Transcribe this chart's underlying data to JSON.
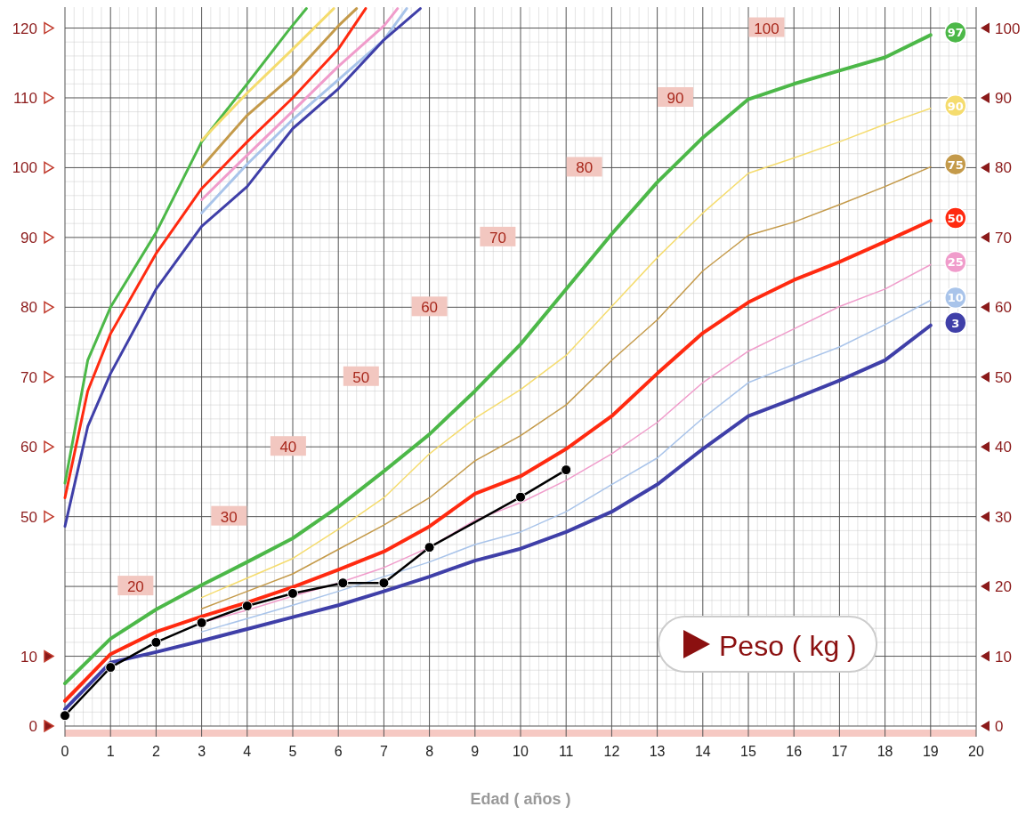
{
  "chart_data": {
    "type": "line",
    "xlabel": "Edad ( años )",
    "xlim": [
      0,
      20
    ],
    "xticks": [
      0,
      1,
      2,
      3,
      4,
      5,
      6,
      7,
      8,
      9,
      10,
      11,
      12,
      13,
      14,
      15,
      16,
      17,
      18,
      19,
      20
    ],
    "ylim": [
      20,
      123
    ],
    "yticks": [
      50,
      60,
      70,
      80,
      90,
      100,
      110,
      120
    ],
    "y3lim": [
      0,
      103
    ],
    "y3ticks": [
      0,
      10
    ],
    "y2lim": [
      0,
      103
    ],
    "y2ticks": [
      0,
      10,
      20,
      30,
      40,
      50,
      60,
      70,
      80,
      90,
      100
    ],
    "grid": true,
    "marker": "none",
    "annotations": [
      "Peso ( kg )",
      {
        "text": "20",
        "x": 1.55,
        "y": 40
      },
      {
        "text": "30",
        "x": 3.6,
        "y": 50
      },
      {
        "text": "40",
        "x": 4.9,
        "y": 60
      },
      {
        "text": "50",
        "x": 6.5,
        "y": 70
      },
      {
        "text": "60",
        "x": 8,
        "y": 80
      },
      {
        "text": "70",
        "x": 9.5,
        "y": 90
      },
      {
        "text": "80",
        "x": 11.4,
        "y": 100
      },
      {
        "text": "90",
        "x": 13.4,
        "y": 110
      },
      {
        "text": "100",
        "x": 15.4,
        "y": 120
      }
    ],
    "series": [
      {
        "color": "#4cb848",
        "axis": "y",
        "x": [
          0,
          0.5,
          1,
          2,
          3,
          4,
          4.9,
          5.3
        ],
        "values": [
          54.8,
          72.4,
          80,
          90.7,
          103.7,
          112,
          119.6,
          122.8
        ]
      },
      {
        "color": "#f5dc6e",
        "axis": "y",
        "x": [
          3,
          4,
          5,
          5.9
        ],
        "values": [
          103.9,
          110.7,
          117,
          122.8
        ]
      },
      {
        "color": "#c49a4a",
        "axis": "y",
        "x": [
          3,
          4,
          5,
          6,
          6.4
        ],
        "values": [
          100.1,
          107.5,
          113.2,
          120.3,
          122.8
        ]
      },
      {
        "color": "#ff2a10",
        "axis": "y",
        "x": [
          0,
          0.5,
          1,
          2,
          3,
          4,
          5,
          6,
          6.6
        ],
        "values": [
          52.7,
          68,
          76.2,
          87.7,
          97,
          103.7,
          110,
          117,
          122.8
        ]
      },
      {
        "color": "#f09ccb",
        "axis": "y",
        "x": [
          3,
          4,
          5,
          6,
          7,
          7.3
        ],
        "values": [
          95.4,
          101.8,
          108.1,
          114.5,
          120.3,
          122.8
        ]
      },
      {
        "color": "#a9c4ea",
        "axis": "y",
        "x": [
          3,
          4,
          5,
          6,
          7,
          7.5
        ],
        "values": [
          93.5,
          100.5,
          106.9,
          112.6,
          118.3,
          122.8
        ]
      },
      {
        "color": "#3f3fa8",
        "axis": "y",
        "x": [
          0,
          0.5,
          1,
          2,
          3,
          4,
          5,
          6,
          7,
          7.8
        ],
        "values": [
          48.6,
          62.9,
          70.5,
          82.6,
          91.6,
          97.3,
          105.6,
          111.3,
          118.3,
          122.8
        ]
      },
      {
        "name": "97",
        "color": "#4cb848",
        "axis": "y2",
        "x": [
          0,
          1,
          2,
          3,
          4,
          5,
          6,
          7,
          8,
          9,
          10,
          11,
          12,
          13,
          14,
          15,
          16,
          17,
          18,
          19
        ],
        "values": [
          6.1,
          12.5,
          16.7,
          20.2,
          23.5,
          26.9,
          31.4,
          36.5,
          41.8,
          48,
          54.7,
          62.6,
          70.5,
          77.9,
          84.3,
          89.8,
          92,
          93.9,
          95.8,
          99
        ]
      },
      {
        "name": "90",
        "color": "#f5dc6e",
        "axis": "y2",
        "x": [
          3,
          4,
          5,
          6,
          7,
          8,
          9,
          10,
          11,
          12,
          13,
          14,
          15,
          16,
          17,
          18,
          19
        ],
        "values": [
          18.4,
          21.2,
          24,
          28.2,
          32.7,
          39,
          44.1,
          48.2,
          53.1,
          60.1,
          67.1,
          73.5,
          79.2,
          81.4,
          83.7,
          86.2,
          88.5
        ]
      },
      {
        "name": "75",
        "color": "#c49a4a",
        "axis": "y2",
        "x": [
          3,
          4,
          5,
          6,
          7,
          8,
          9,
          10,
          11,
          12,
          13,
          14,
          15,
          16,
          17,
          18,
          19
        ],
        "values": [
          16.8,
          19.3,
          21.8,
          25.3,
          28.8,
          32.7,
          38,
          41.6,
          46,
          52.4,
          58.2,
          65.2,
          70.3,
          72.2,
          74.7,
          77.3,
          80.1
        ]
      },
      {
        "name": "50",
        "color": "#ff2a10",
        "axis": "y2",
        "x": [
          0,
          1,
          2,
          3,
          4,
          5,
          6,
          7,
          8,
          9,
          10,
          11,
          12,
          13,
          14,
          15,
          16,
          17,
          18,
          19
        ],
        "values": [
          3.6,
          10.3,
          13.5,
          15.7,
          17.7,
          19.9,
          22.4,
          25,
          28.6,
          33.3,
          35.8,
          39.7,
          44.4,
          50.5,
          56.3,
          60.7,
          63.9,
          66.5,
          69.4,
          72.4
        ]
      },
      {
        "name": "25",
        "color": "#f09ccb",
        "axis": "y2",
        "x": [
          3,
          4,
          5,
          6,
          7,
          8,
          9,
          10,
          11,
          12,
          13,
          14,
          15,
          16,
          17,
          18,
          19
        ],
        "values": [
          14.8,
          16.6,
          18.6,
          20.5,
          22.7,
          25.6,
          29.5,
          32,
          35.2,
          39,
          43.5,
          49.2,
          53.7,
          56.9,
          60.1,
          62.6,
          66.1
        ]
      },
      {
        "name": "10",
        "color": "#a9c4ea",
        "axis": "y2",
        "x": [
          3,
          4,
          5,
          6,
          7,
          8,
          9,
          10,
          11,
          12,
          13,
          14,
          15,
          16,
          17,
          18,
          19
        ],
        "values": [
          13.5,
          15.4,
          17.3,
          19.3,
          21.4,
          23.5,
          26,
          27.8,
          30.7,
          34.6,
          38.4,
          44.1,
          49.2,
          51.8,
          54.3,
          57.5,
          61
        ]
      },
      {
        "name": "3",
        "color": "#3f3fa8",
        "axis": "y2",
        "x": [
          0,
          1,
          2,
          3,
          4,
          5,
          6,
          7,
          8,
          9,
          10,
          11,
          12,
          13,
          14,
          15,
          16,
          17,
          18,
          19
        ],
        "values": [
          2.4,
          9.1,
          10.6,
          12.2,
          13.9,
          15.6,
          17.3,
          19.3,
          21.4,
          23.7,
          25.4,
          27.8,
          30.7,
          34.6,
          39.7,
          44.4,
          46.9,
          49.5,
          52.4,
          57.4
        ]
      },
      {
        "color": "#000000",
        "axis": "y2",
        "marker": "circle",
        "x": [
          0,
          1,
          2,
          3,
          4,
          5,
          6.1,
          7,
          8,
          10,
          11
        ],
        "values": [
          1.5,
          8.4,
          12,
          14.8,
          17.2,
          19,
          20.5,
          20.5,
          25.6,
          32.8,
          36.7
        ]
      }
    ]
  }
}
